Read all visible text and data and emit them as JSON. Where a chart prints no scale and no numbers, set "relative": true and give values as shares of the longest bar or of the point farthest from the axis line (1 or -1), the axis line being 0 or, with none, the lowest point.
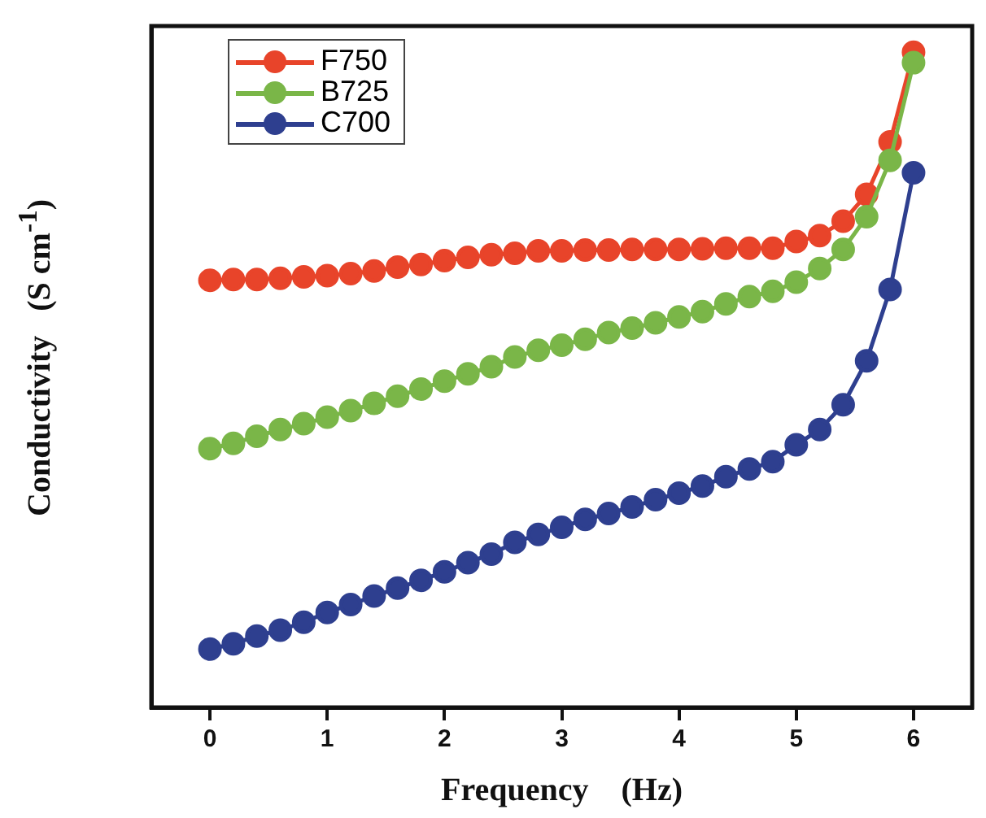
{
  "chart_data": {
    "type": "line",
    "xlabel": "Frequency    (Hz)",
    "ylabel": "Conductivity   (S cm$^{-1}$)",
    "relative": true,
    "legend": "top left",
    "marker": "circle",
    "line_style": "solid",
    "grid": false,
    "x": [
      0,
      0.2,
      0.4,
      0.6,
      0.8,
      1,
      1.2,
      1.4,
      1.6,
      1.8,
      2,
      2.2,
      2.4,
      2.6,
      2.8,
      3,
      3.2,
      3.4,
      3.6,
      3.8,
      4,
      4.2,
      4.4,
      4.6,
      4.8,
      5,
      5.2,
      5.4,
      5.6,
      5.8,
      6
    ],
    "xlim": [
      -0.5,
      6.5
    ],
    "xticks": [
      0,
      1,
      2,
      3,
      4,
      5,
      6
    ],
    "series": [
      {
        "name": "F750",
        "color": "#e8442a",
        "values": [
          0.652,
          0.653,
          0.653,
          0.655,
          0.657,
          0.659,
          0.662,
          0.666,
          0.672,
          0.676,
          0.682,
          0.687,
          0.691,
          0.693,
          0.697,
          0.697,
          0.698,
          0.698,
          0.699,
          0.699,
          0.699,
          0.7,
          0.701,
          0.701,
          0.701,
          0.711,
          0.72,
          0.742,
          0.783,
          0.863,
          1.0
        ]
      },
      {
        "name": "B725",
        "color": "#7ab648",
        "values": [
          0.395,
          0.403,
          0.414,
          0.424,
          0.433,
          0.443,
          0.453,
          0.464,
          0.475,
          0.486,
          0.498,
          0.509,
          0.52,
          0.535,
          0.545,
          0.553,
          0.562,
          0.572,
          0.579,
          0.587,
          0.596,
          0.604,
          0.616,
          0.627,
          0.635,
          0.649,
          0.67,
          0.699,
          0.749,
          0.835,
          0.984
        ]
      },
      {
        "name": "C700",
        "color": "#2e3f8f",
        "values": [
          0.089,
          0.097,
          0.109,
          0.118,
          0.13,
          0.145,
          0.157,
          0.17,
          0.182,
          0.194,
          0.207,
          0.221,
          0.234,
          0.252,
          0.264,
          0.275,
          0.287,
          0.296,
          0.306,
          0.317,
          0.327,
          0.338,
          0.352,
          0.364,
          0.375,
          0.401,
          0.424,
          0.462,
          0.529,
          0.638,
          0.816
        ]
      }
    ]
  }
}
